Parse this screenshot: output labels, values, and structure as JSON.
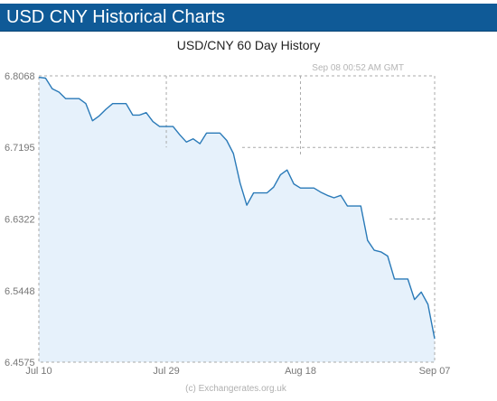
{
  "header": {
    "title": "USD CNY Historical Charts"
  },
  "footer": {
    "credit": "(c) Exchangerates.org.uk"
  },
  "colors": {
    "header_bg": "#0f5a97",
    "line": "#2a7ab8",
    "fill": "#e6f1fb",
    "grid": "#aaaaaa"
  },
  "chart_data": {
    "type": "area",
    "title": "USD/CNY  60 Day History",
    "timestamp": "Sep 08  00:52 AM GMT",
    "xlabel": "",
    "ylabel": "",
    "ylim": [
      6.4575,
      6.8068
    ],
    "y_ticks": [
      "6.8068",
      "6.7195",
      "6.6322",
      "6.5448",
      "6.4575"
    ],
    "x_ticks": [
      {
        "label": "Jul 10",
        "index": 0
      },
      {
        "label": "Jul 29",
        "index": 19
      },
      {
        "label": "Aug 18",
        "index": 39
      },
      {
        "label": "Sep 07",
        "index": 59
      }
    ],
    "start_date": "Jul 10",
    "values": [
      6.805,
      6.804,
      6.791,
      6.787,
      6.779,
      6.779,
      6.779,
      6.773,
      6.752,
      6.758,
      6.766,
      6.773,
      6.773,
      6.773,
      6.759,
      6.759,
      6.762,
      6.751,
      6.745,
      6.745,
      6.745,
      6.735,
      6.726,
      6.73,
      6.724,
      6.737,
      6.737,
      6.737,
      6.728,
      6.712,
      6.676,
      6.649,
      6.664,
      6.664,
      6.664,
      6.671,
      6.686,
      6.692,
      6.675,
      6.67,
      6.67,
      6.67,
      6.665,
      6.661,
      6.658,
      6.661,
      6.648,
      6.648,
      6.648,
      6.606,
      6.594,
      6.592,
      6.587,
      6.559,
      6.559,
      6.559,
      6.534,
      6.543,
      6.528,
      6.486
    ]
  }
}
